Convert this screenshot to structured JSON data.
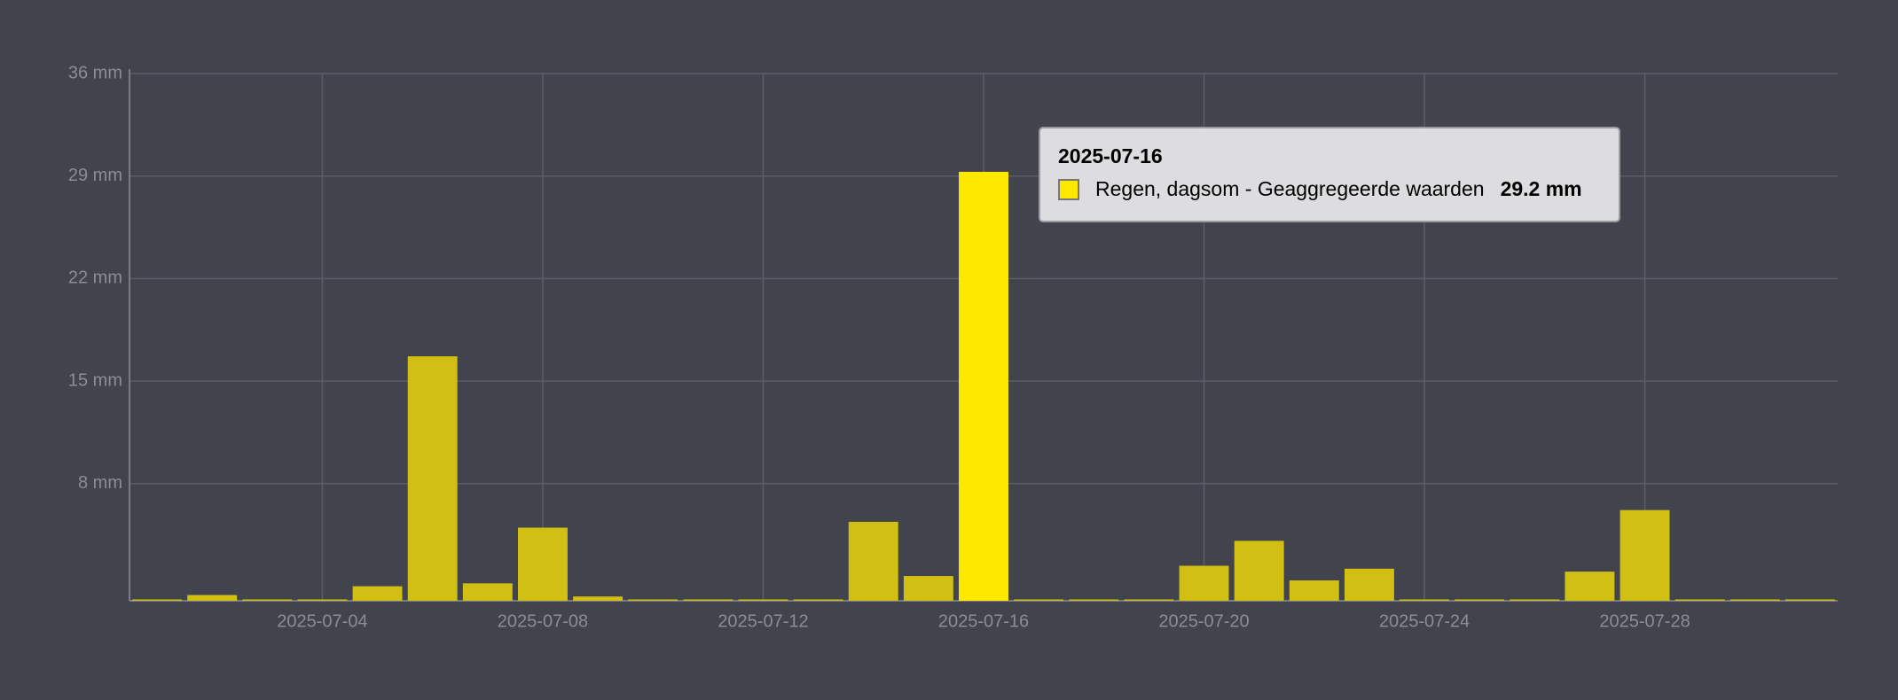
{
  "chart_data": {
    "type": "bar",
    "x": [
      "2025-07-01",
      "2025-07-02",
      "2025-07-03",
      "2025-07-04",
      "2025-07-05",
      "2025-07-06",
      "2025-07-07",
      "2025-07-08",
      "2025-07-09",
      "2025-07-10",
      "2025-07-11",
      "2025-07-12",
      "2025-07-13",
      "2025-07-14",
      "2025-07-15",
      "2025-07-16",
      "2025-07-17",
      "2025-07-18",
      "2025-07-19",
      "2025-07-20",
      "2025-07-21",
      "2025-07-22",
      "2025-07-23",
      "2025-07-24",
      "2025-07-25",
      "2025-07-26",
      "2025-07-27",
      "2025-07-28",
      "2025-07-29",
      "2025-07-30",
      "2025-07-31"
    ],
    "series": [
      {
        "name": "Regen, dagsom - Geaggregeerde waarden",
        "color": "#d2bf14",
        "highlight_color": "#ffe800",
        "values": [
          0,
          0.3,
          0,
          0,
          0.9,
          16.6,
          1.1,
          4.9,
          0.2,
          0,
          0,
          0,
          0,
          5.3,
          1.6,
          29.2,
          0,
          0,
          0,
          2.3,
          4.0,
          1.3,
          2.1,
          0,
          0,
          0,
          1.9,
          6.1,
          0,
          0,
          0
        ]
      }
    ],
    "ylim": [
      0,
      36
    ],
    "yticks": [
      {
        "value": 8,
        "label": "8 mm"
      },
      {
        "value": 15,
        "label": "15 mm"
      },
      {
        "value": 22,
        "label": "22 mm"
      },
      {
        "value": 29,
        "label": "29 mm"
      },
      {
        "value": 36,
        "label": "36 mm"
      }
    ],
    "xticks": [
      "2025-07-04",
      "2025-07-08",
      "2025-07-12",
      "2025-07-16",
      "2025-07-20",
      "2025-07-24",
      "2025-07-28"
    ],
    "grid": true,
    "tooltip": {
      "x": "2025-07-16",
      "value_label": "29.2 mm"
    }
  }
}
